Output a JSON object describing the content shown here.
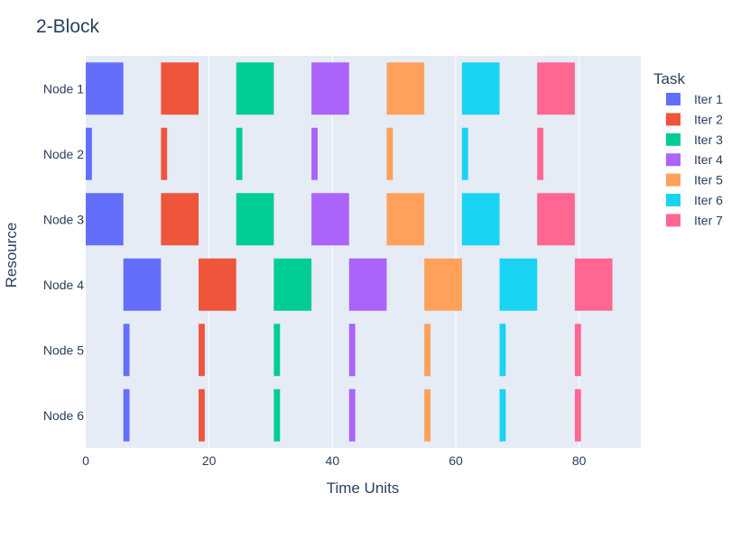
{
  "chart_data": {
    "type": "bar",
    "orientation": "horizontal-gantt",
    "title": "2-Block",
    "xlabel": "Time Units",
    "ylabel": "Resource",
    "xlim": [
      0,
      90
    ],
    "x_ticks": [
      0,
      20,
      40,
      60,
      80
    ],
    "categories": [
      "Node 1",
      "Node 2",
      "Node 3",
      "Node 4",
      "Node 5",
      "Node 6"
    ],
    "grid": true,
    "legend": {
      "title": "Task",
      "position": "right"
    },
    "series": [
      {
        "name": "Iter 1",
        "color": "#636efa",
        "tasks": [
          {
            "resource": "Node 1",
            "start": 0.0,
            "end": 6.1
          },
          {
            "resource": "Node 2",
            "start": 0.0,
            "end": 1.0
          },
          {
            "resource": "Node 3",
            "start": 0.0,
            "end": 6.1
          },
          {
            "resource": "Node 4",
            "start": 6.1,
            "end": 12.2
          },
          {
            "resource": "Node 5",
            "start": 6.1,
            "end": 7.1
          },
          {
            "resource": "Node 6",
            "start": 6.1,
            "end": 7.1
          }
        ]
      },
      {
        "name": "Iter 2",
        "color": "#ef553b",
        "tasks": [
          {
            "resource": "Node 1",
            "start": 12.2,
            "end": 18.3
          },
          {
            "resource": "Node 2",
            "start": 12.2,
            "end": 13.2
          },
          {
            "resource": "Node 3",
            "start": 12.2,
            "end": 18.3
          },
          {
            "resource": "Node 4",
            "start": 18.3,
            "end": 24.4
          },
          {
            "resource": "Node 5",
            "start": 18.3,
            "end": 19.3
          },
          {
            "resource": "Node 6",
            "start": 18.3,
            "end": 19.3
          }
        ]
      },
      {
        "name": "Iter 3",
        "color": "#00cc96",
        "tasks": [
          {
            "resource": "Node 1",
            "start": 24.4,
            "end": 30.5
          },
          {
            "resource": "Node 2",
            "start": 24.4,
            "end": 25.4
          },
          {
            "resource": "Node 3",
            "start": 24.4,
            "end": 30.5
          },
          {
            "resource": "Node 4",
            "start": 30.5,
            "end": 36.6
          },
          {
            "resource": "Node 5",
            "start": 30.5,
            "end": 31.5
          },
          {
            "resource": "Node 6",
            "start": 30.5,
            "end": 31.5
          }
        ]
      },
      {
        "name": "Iter 4",
        "color": "#ab63fa",
        "tasks": [
          {
            "resource": "Node 1",
            "start": 36.6,
            "end": 42.7
          },
          {
            "resource": "Node 2",
            "start": 36.6,
            "end": 37.6
          },
          {
            "resource": "Node 3",
            "start": 36.6,
            "end": 42.7
          },
          {
            "resource": "Node 4",
            "start": 42.7,
            "end": 48.8
          },
          {
            "resource": "Node 5",
            "start": 42.7,
            "end": 43.7
          },
          {
            "resource": "Node 6",
            "start": 42.7,
            "end": 43.7
          }
        ]
      },
      {
        "name": "Iter 5",
        "color": "#ffa15a",
        "tasks": [
          {
            "resource": "Node 1",
            "start": 48.8,
            "end": 54.9
          },
          {
            "resource": "Node 2",
            "start": 48.8,
            "end": 49.8
          },
          {
            "resource": "Node 3",
            "start": 48.8,
            "end": 54.9
          },
          {
            "resource": "Node 4",
            "start": 54.9,
            "end": 61.0
          },
          {
            "resource": "Node 5",
            "start": 54.9,
            "end": 55.9
          },
          {
            "resource": "Node 6",
            "start": 54.9,
            "end": 55.9
          }
        ]
      },
      {
        "name": "Iter 6",
        "color": "#19d3f3",
        "tasks": [
          {
            "resource": "Node 1",
            "start": 61.0,
            "end": 67.1
          },
          {
            "resource": "Node 2",
            "start": 61.0,
            "end": 62.0
          },
          {
            "resource": "Node 3",
            "start": 61.0,
            "end": 67.1
          },
          {
            "resource": "Node 4",
            "start": 67.1,
            "end": 73.2
          },
          {
            "resource": "Node 5",
            "start": 67.1,
            "end": 68.1
          },
          {
            "resource": "Node 6",
            "start": 67.1,
            "end": 68.1
          }
        ]
      },
      {
        "name": "Iter 7",
        "color": "#ff6692",
        "tasks": [
          {
            "resource": "Node 1",
            "start": 73.2,
            "end": 79.3
          },
          {
            "resource": "Node 2",
            "start": 73.2,
            "end": 74.2
          },
          {
            "resource": "Node 3",
            "start": 73.2,
            "end": 79.3
          },
          {
            "resource": "Node 4",
            "start": 79.3,
            "end": 85.4
          },
          {
            "resource": "Node 5",
            "start": 79.3,
            "end": 80.3
          },
          {
            "resource": "Node 6",
            "start": 79.3,
            "end": 80.3
          }
        ]
      }
    ]
  },
  "colors": {
    "plot_background": "#e5ecf6",
    "gridline": "#ffffff",
    "text": "#2a3f5f"
  }
}
